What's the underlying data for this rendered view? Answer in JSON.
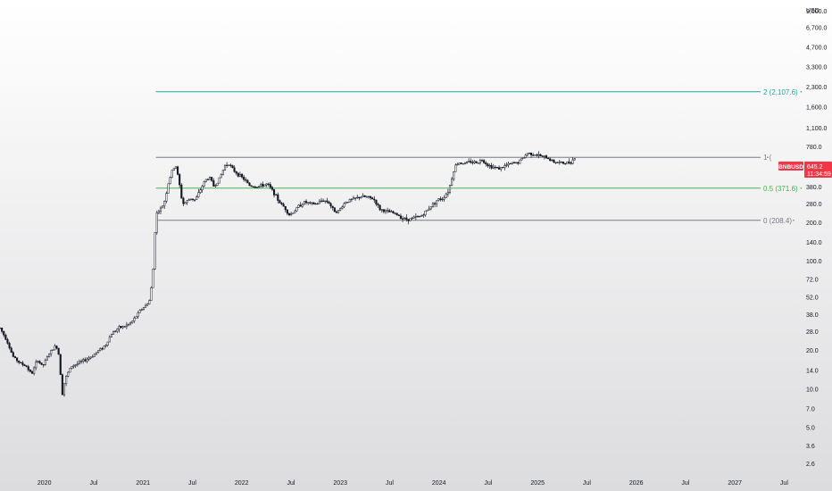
{
  "chart_data": {
    "type": "candlestick",
    "symbol": "BNBUSD",
    "currency": "USD",
    "scale": "log",
    "ylim": [
      2.2,
      11000
    ],
    "y_ticks": [
      {
        "value": 9000,
        "label": "9,000.0"
      },
      {
        "value": 6700,
        "label": "6,700.0"
      },
      {
        "value": 4700,
        "label": "4,700.0"
      },
      {
        "value": 3300,
        "label": "3,300.0"
      },
      {
        "value": 2300,
        "label": "2,300.0"
      },
      {
        "value": 1600,
        "label": "1,600.0"
      },
      {
        "value": 1100,
        "label": "1,100.0"
      },
      {
        "value": 780,
        "label": "780.0"
      },
      {
        "value": 520,
        "label": "520.0"
      },
      {
        "value": 380,
        "label": "380.0"
      },
      {
        "value": 280,
        "label": "280.0"
      },
      {
        "value": 200,
        "label": "200.0"
      },
      {
        "value": 140,
        "label": "140.0"
      },
      {
        "value": 100,
        "label": "100.0"
      },
      {
        "value": 72,
        "label": "72.0"
      },
      {
        "value": 52,
        "label": "52.0"
      },
      {
        "value": 38,
        "label": "38.0"
      },
      {
        "value": 28,
        "label": "28.0"
      },
      {
        "value": 20,
        "label": "20.0"
      },
      {
        "value": 14,
        "label": "14.0"
      },
      {
        "value": 10,
        "label": "10.0"
      },
      {
        "value": 7,
        "label": "7.0"
      },
      {
        "value": 5,
        "label": "5.0"
      },
      {
        "value": 3.6,
        "label": "3.6"
      },
      {
        "value": 2.6,
        "label": "2.6"
      }
    ],
    "x_ticks": [
      {
        "label": "2020",
        "year": 2020.0
      },
      {
        "label": "Jul",
        "year": 2020.5
      },
      {
        "label": "2021",
        "year": 2021.0
      },
      {
        "label": "Jul",
        "year": 2021.5
      },
      {
        "label": "2022",
        "year": 2022.0
      },
      {
        "label": "Jul",
        "year": 2022.5
      },
      {
        "label": "2023",
        "year": 2023.0
      },
      {
        "label": "Jul",
        "year": 2023.5
      },
      {
        "label": "2024",
        "year": 2024.0
      },
      {
        "label": "Jul",
        "year": 2024.5
      },
      {
        "label": "2025",
        "year": 2025.0
      },
      {
        "label": "Jul",
        "year": 2025.5
      },
      {
        "label": "2026",
        "year": 2026.0
      },
      {
        "label": "Jul",
        "year": 2026.5
      },
      {
        "label": "2027",
        "year": 2027.0
      },
      {
        "label": "Jul",
        "year": 2027.5
      }
    ],
    "xlim": [
      2019.55,
      2027.65
    ],
    "fib_levels": [
      {
        "label": "2 (2,107.6)",
        "ratio": 2,
        "value": 2107.6,
        "color": "#26a69a"
      },
      {
        "label": "1 (",
        "ratio": 1,
        "value": 648,
        "color": "#787b86"
      },
      {
        "label": "0.5 (371.6)",
        "ratio": 0.5,
        "value": 371.6,
        "color": "#4caf50"
      },
      {
        "label": "0 (208.4)",
        "ratio": 0,
        "value": 208.4,
        "color": "#787b86"
      }
    ],
    "fib_start_year": 2021.13,
    "price_path": [
      [
        2019.55,
        30
      ],
      [
        2019.62,
        24
      ],
      [
        2019.68,
        18
      ],
      [
        2019.75,
        16
      ],
      [
        2019.82,
        15
      ],
      [
        2019.87,
        13
      ],
      [
        2019.93,
        17
      ],
      [
        2019.98,
        15
      ],
      [
        2020.05,
        19
      ],
      [
        2020.12,
        22
      ],
      [
        2020.15,
        18
      ],
      [
        2020.18,
        9
      ],
      [
        2020.21,
        12
      ],
      [
        2020.27,
        15
      ],
      [
        2020.35,
        16
      ],
      [
        2020.42,
        17
      ],
      [
        2020.48,
        18
      ],
      [
        2020.55,
        20
      ],
      [
        2020.62,
        22
      ],
      [
        2020.68,
        27
      ],
      [
        2020.75,
        30
      ],
      [
        2020.82,
        31
      ],
      [
        2020.88,
        33
      ],
      [
        2020.93,
        37
      ],
      [
        2020.98,
        42
      ],
      [
        2021.03,
        45
      ],
      [
        2021.07,
        50
      ],
      [
        2021.1,
        80
      ],
      [
        2021.13,
        230
      ],
      [
        2021.16,
        250
      ],
      [
        2021.19,
        260
      ],
      [
        2021.22,
        300
      ],
      [
        2021.26,
        420
      ],
      [
        2021.3,
        520
      ],
      [
        2021.33,
        560
      ],
      [
        2021.36,
        440
      ],
      [
        2021.4,
        280
      ],
      [
        2021.44,
        290
      ],
      [
        2021.48,
        310
      ],
      [
        2021.53,
        300
      ],
      [
        2021.58,
        360
      ],
      [
        2021.63,
        430
      ],
      [
        2021.68,
        450
      ],
      [
        2021.72,
        380
      ],
      [
        2021.78,
        450
      ],
      [
        2021.83,
        560
      ],
      [
        2021.87,
        580
      ],
      [
        2021.91,
        520
      ],
      [
        2021.96,
        480
      ],
      [
        2022.02,
        440
      ],
      [
        2022.08,
        390
      ],
      [
        2022.14,
        380
      ],
      [
        2022.2,
        390
      ],
      [
        2022.26,
        400
      ],
      [
        2022.32,
        350
      ],
      [
        2022.38,
        290
      ],
      [
        2022.44,
        260
      ],
      [
        2022.48,
        230
      ],
      [
        2022.52,
        240
      ],
      [
        2022.58,
        270
      ],
      [
        2022.64,
        290
      ],
      [
        2022.7,
        280
      ],
      [
        2022.76,
        280
      ],
      [
        2022.82,
        300
      ],
      [
        2022.88,
        290
      ],
      [
        2022.93,
        250
      ],
      [
        2022.98,
        245
      ],
      [
        2023.05,
        290
      ],
      [
        2023.1,
        300
      ],
      [
        2023.16,
        310
      ],
      [
        2023.22,
        320
      ],
      [
        2023.28,
        315
      ],
      [
        2023.34,
        305
      ],
      [
        2023.4,
        255
      ],
      [
        2023.46,
        245
      ],
      [
        2023.52,
        240
      ],
      [
        2023.58,
        230
      ],
      [
        2023.64,
        215
      ],
      [
        2023.7,
        212
      ],
      [
        2023.76,
        220
      ],
      [
        2023.82,
        225
      ],
      [
        2023.88,
        250
      ],
      [
        2023.93,
        275
      ],
      [
        2023.98,
        300
      ],
      [
        2024.04,
        310
      ],
      [
        2024.1,
        360
      ],
      [
        2024.16,
        550
      ],
      [
        2024.2,
        590
      ],
      [
        2024.26,
        580
      ],
      [
        2024.32,
        600
      ],
      [
        2024.38,
        590
      ],
      [
        2024.44,
        620
      ],
      [
        2024.5,
        560
      ],
      [
        2024.56,
        540
      ],
      [
        2024.62,
        530
      ],
      [
        2024.68,
        560
      ],
      [
        2024.74,
        580
      ],
      [
        2024.8,
        590
      ],
      [
        2024.86,
        650
      ],
      [
        2024.9,
        700
      ],
      [
        2024.94,
        690
      ],
      [
        2024.98,
        680
      ],
      [
        2025.04,
        660
      ],
      [
        2025.1,
        640
      ],
      [
        2025.16,
        600
      ],
      [
        2025.22,
        590
      ],
      [
        2025.28,
        580
      ],
      [
        2025.34,
        600
      ],
      [
        2025.38,
        645
      ]
    ],
    "last_price": {
      "symbol_label": "BNBUSD",
      "price_label": "645.2",
      "countdown": "11:34:59",
      "color": "#f23645",
      "value": 645.2
    }
  }
}
